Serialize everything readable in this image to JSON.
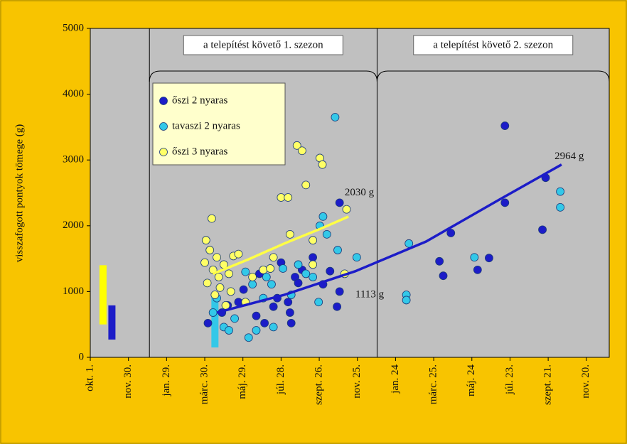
{
  "chart_data": {
    "type": "scatter",
    "y_label": "visszafogott pontyok tömege (g)",
    "xlim": [
      0,
      816
    ],
    "ylim": [
      0,
      5000
    ],
    "yticks": [
      0,
      1000,
      2000,
      3000,
      4000,
      5000
    ],
    "xticks": [
      {
        "value": 0,
        "label": "okt. 1."
      },
      {
        "value": 60,
        "label": "nov. 30."
      },
      {
        "value": 120,
        "label": "jan. 29."
      },
      {
        "value": 180,
        "label": "márc. 30."
      },
      {
        "value": 240,
        "label": "máj. 29."
      },
      {
        "value": 300,
        "label": "júl. 28."
      },
      {
        "value": 360,
        "label": "szept. 26."
      },
      {
        "value": 420,
        "label": "nov. 25."
      },
      {
        "value": 480,
        "label": "jan. 24"
      },
      {
        "value": 540,
        "label": "márc. 25."
      },
      {
        "value": 600,
        "label": "máj. 24"
      },
      {
        "value": 660,
        "label": "júl. 23."
      },
      {
        "value": 720,
        "label": "szept. 21."
      },
      {
        "value": 780,
        "label": "nov. 20."
      }
    ],
    "seasons": [
      {
        "label": "a telepítést követő 1. szezon",
        "start": 93,
        "end": 451
      },
      {
        "label": "a telepítést követő 2. szezon",
        "start": 451,
        "end": 816
      }
    ],
    "series": [
      {
        "name": "őszi 2 nyaras",
        "color": "#1c1cc8",
        "x": [
          185,
          207,
          216,
          233,
          241,
          261,
          266,
          274,
          283,
          288,
          294,
          300,
          311,
          314,
          316,
          322,
          327,
          333,
          350,
          366,
          377,
          388,
          392,
          392,
          549,
          555,
          567,
          609,
          627,
          652,
          652,
          711,
          716
        ],
        "values": [
          520,
          680,
          790,
          840,
          1030,
          630,
          1270,
          520,
          1350,
          770,
          900,
          1440,
          840,
          680,
          520,
          1220,
          1130,
          1330,
          1520,
          1110,
          1310,
          770,
          1000,
          2350,
          1460,
          1240,
          1890,
          1330,
          1510,
          2350,
          3520,
          1940,
          2730
        ]
      },
      {
        "name": "tavaszi 2 nyaras",
        "color": "#33c8e8",
        "x": [
          193,
          199,
          210,
          218,
          227,
          244,
          249,
          255,
          261,
          272,
          277,
          285,
          288,
          303,
          316,
          327,
          339,
          350,
          359,
          361,
          366,
          372,
          385,
          389,
          419,
          497,
          497,
          501,
          604,
          739,
          739
        ],
        "values": [
          680,
          900,
          460,
          410,
          590,
          1300,
          300,
          1110,
          410,
          900,
          1220,
          1110,
          460,
          1350,
          950,
          1410,
          1270,
          1220,
          840,
          2000,
          2140,
          1870,
          3650,
          1630,
          1520,
          950,
          870,
          1730,
          1520,
          2520,
          2280
        ]
      },
      {
        "name": "őszi 3 nyaras",
        "color": "#ffff66",
        "x": [
          180,
          182,
          184,
          188,
          191,
          193,
          196,
          199,
          202,
          204,
          210,
          213,
          218,
          221,
          225,
          233,
          244,
          255,
          272,
          283,
          288,
          300,
          311,
          314,
          325,
          333,
          339,
          350,
          361,
          365,
          350,
          403,
          400
        ],
        "values": [
          1440,
          1780,
          1130,
          1630,
          2110,
          1330,
          950,
          1520,
          1220,
          1060,
          1410,
          790,
          1270,
          1000,
          1540,
          1570,
          840,
          1220,
          1330,
          1350,
          1520,
          2430,
          2430,
          1870,
          3220,
          3140,
          2620,
          1410,
          3030,
          2930,
          1780,
          2250,
          1270
        ]
      }
    ],
    "trend_lines": [
      {
        "color": "#ffff44",
        "x": [
          193,
          249,
          305,
          361,
          406
        ],
        "values": [
          1270,
          1490,
          1730,
          1950,
          2140
        ]
      },
      {
        "color": "#1c1cc8",
        "x": [
          199,
          305,
          417,
          528,
          640,
          741
        ],
        "values": [
          680,
          950,
          1310,
          1760,
          2380,
          2930
        ]
      }
    ],
    "stocking_ranges": [
      {
        "color": "#ffff00",
        "x": 20,
        "low": 500,
        "high": 1400
      },
      {
        "color": "#1c1cc8",
        "x": 34,
        "low": 270,
        "high": 790
      },
      {
        "color": "#33c8e8",
        "x": 196,
        "low": 150,
        "high": 950
      }
    ],
    "annotations": [
      {
        "text": "2030 g",
        "x": 400,
        "y": 2500
      },
      {
        "text": "1113 g",
        "x": 417,
        "y": 950
      },
      {
        "text": "2964 g",
        "x": 730,
        "y": 3050
      }
    ]
  }
}
